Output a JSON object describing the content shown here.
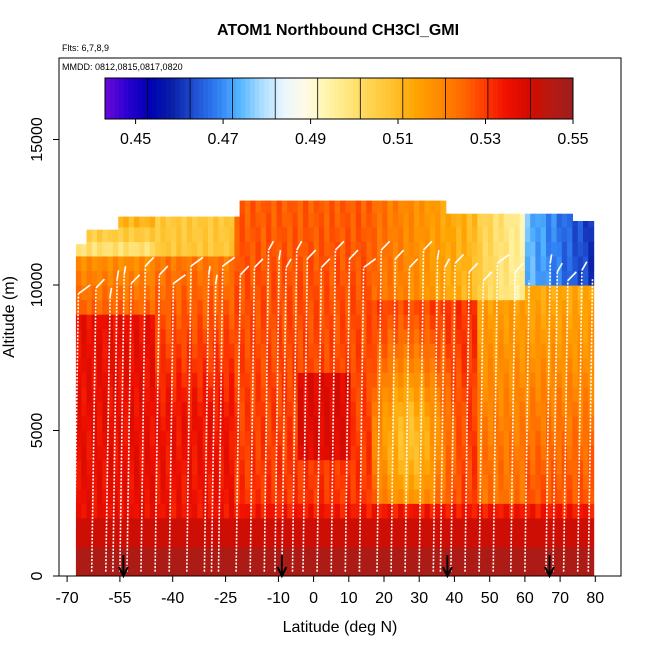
{
  "chart_data": {
    "type": "heatmap",
    "title": "ATOM1 Northbound CH3Cl_GMI",
    "flights_label": "Flts: 6,7,8,9",
    "mmdd_label": "MMDD: 0812,0815,0817,0820",
    "xlabel": "Latitude (deg N)",
    "ylabel": "Altitude (m)",
    "xlim": [
      -72.3,
      87.3
    ],
    "ylim": [
      0,
      17800
    ],
    "x_ticks": [
      -70,
      -55,
      -40,
      -25,
      -10,
      0,
      10,
      20,
      30,
      40,
      50,
      60,
      70,
      80
    ],
    "x_tick_labels": [
      "-70",
      "-55",
      "-40",
      "-25",
      "-10",
      "0",
      "10",
      "20",
      "30",
      "40",
      "50",
      "60",
      "70",
      "80"
    ],
    "y_ticks": [
      0,
      5000,
      10000,
      15000
    ],
    "y_tick_labels": [
      "0",
      "5000",
      "10000",
      "15000"
    ],
    "colorbar": {
      "min": 0.443,
      "max": 0.55,
      "tick_values": [
        0.45,
        0.47,
        0.49,
        0.51,
        0.53,
        0.55
      ],
      "tick_labels": [
        "0.45",
        "0.47",
        "0.49",
        "0.51",
        "0.53",
        "0.55"
      ],
      "colors": [
        "#6a0ad8",
        "#2b00d0",
        "#0000b4",
        "#0a1fa6",
        "#1f4fd2",
        "#2f7df2",
        "#52b3ff",
        "#a9dcff",
        "#e9f6ff",
        "#fffbe6",
        "#fff4a8",
        "#ffe47a",
        "#ffd24d",
        "#ffbf2a",
        "#ffa200",
        "#ff8a00",
        "#ff6a00",
        "#ff3d00",
        "#f01000",
        "#d40a00",
        "#b81910",
        "#9c1f1f"
      ]
    },
    "profile_latitudes": [
      -68,
      -63,
      -59,
      -57,
      -55,
      -53,
      -49,
      -45,
      -41,
      -36,
      -31,
      -29,
      -27,
      -22,
      -18,
      -14,
      -11,
      -9,
      -6,
      -3,
      1,
      5,
      9,
      13,
      18,
      22,
      26,
      30,
      34,
      36,
      39,
      43,
      47,
      51,
      56,
      60,
      66,
      68,
      71,
      75,
      78
    ],
    "highlight_latitudes": [
      -54,
      -9,
      38,
      67
    ],
    "highlight_marker": "down-arrow"
  }
}
